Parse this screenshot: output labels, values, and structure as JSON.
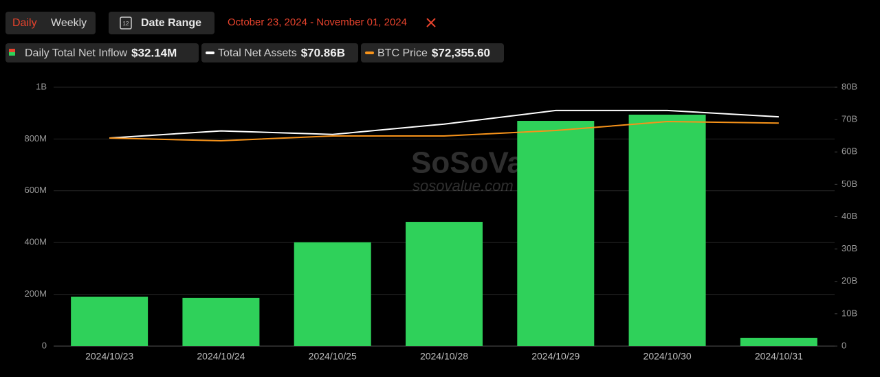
{
  "controls": {
    "daily": "Daily",
    "weekly": "Weekly",
    "date_range": "Date Range",
    "date_range_icon": "12",
    "range_text": "October 23, 2024 - November 01, 2024"
  },
  "watermark": {
    "brand": "SoSoValue",
    "url": "sosovalue.com"
  },
  "chart_data": {
    "type": "bar",
    "categories": [
      "2024/10/23",
      "2024/10/24",
      "2024/10/25",
      "2024/10/28",
      "2024/10/29",
      "2024/10/30",
      "2024/10/31"
    ],
    "series": [
      {
        "name": "Daily Total Net Inflow",
        "summary": "$32.14M",
        "type": "bar",
        "color": "#2fd15a",
        "values": [
          191000000,
          186000000,
          401000000,
          480000000,
          870000000,
          894000000,
          32140000
        ]
      },
      {
        "name": "Total Net Assets",
        "summary": "$70.86B",
        "type": "line",
        "axis": "y2",
        "color": "#ffffff",
        "values": [
          64.3,
          66.5,
          65.4,
          68.6,
          72.8,
          72.8,
          70.86
        ]
      },
      {
        "name": "BTC Price",
        "summary": "$72,355.60",
        "type": "line",
        "axis": "y3",
        "color": "#f7931a",
        "values": [
          67512,
          66621,
          68181,
          68181,
          69963,
          72859,
          72355.6
        ]
      }
    ],
    "ylim": [
      0,
      1000000000
    ],
    "yticks": [
      0,
      {
        "value": 200000000,
        "label": "200M"
      },
      {
        "value": 400000000,
        "label": "400M"
      },
      {
        "value": 600000000,
        "label": "600M"
      },
      {
        "value": 800000000,
        "label": "800M"
      },
      {
        "value": 1000000000,
        "label": "1B"
      }
    ],
    "y2lim": [
      0,
      80
    ],
    "y2ticks": [
      0,
      {
        "value": 10,
        "label": "10B"
      },
      {
        "value": 20,
        "label": "20B"
      },
      {
        "value": 30,
        "label": "30B"
      },
      {
        "value": 40,
        "label": "40B"
      },
      {
        "value": 50,
        "label": "50B"
      },
      {
        "value": 60,
        "label": "60B"
      },
      {
        "value": 70,
        "label": "70B"
      },
      {
        "value": 80,
        "label": "80B"
      }
    ],
    "y3lim": [
      0,
      84000
    ],
    "grid": true
  }
}
